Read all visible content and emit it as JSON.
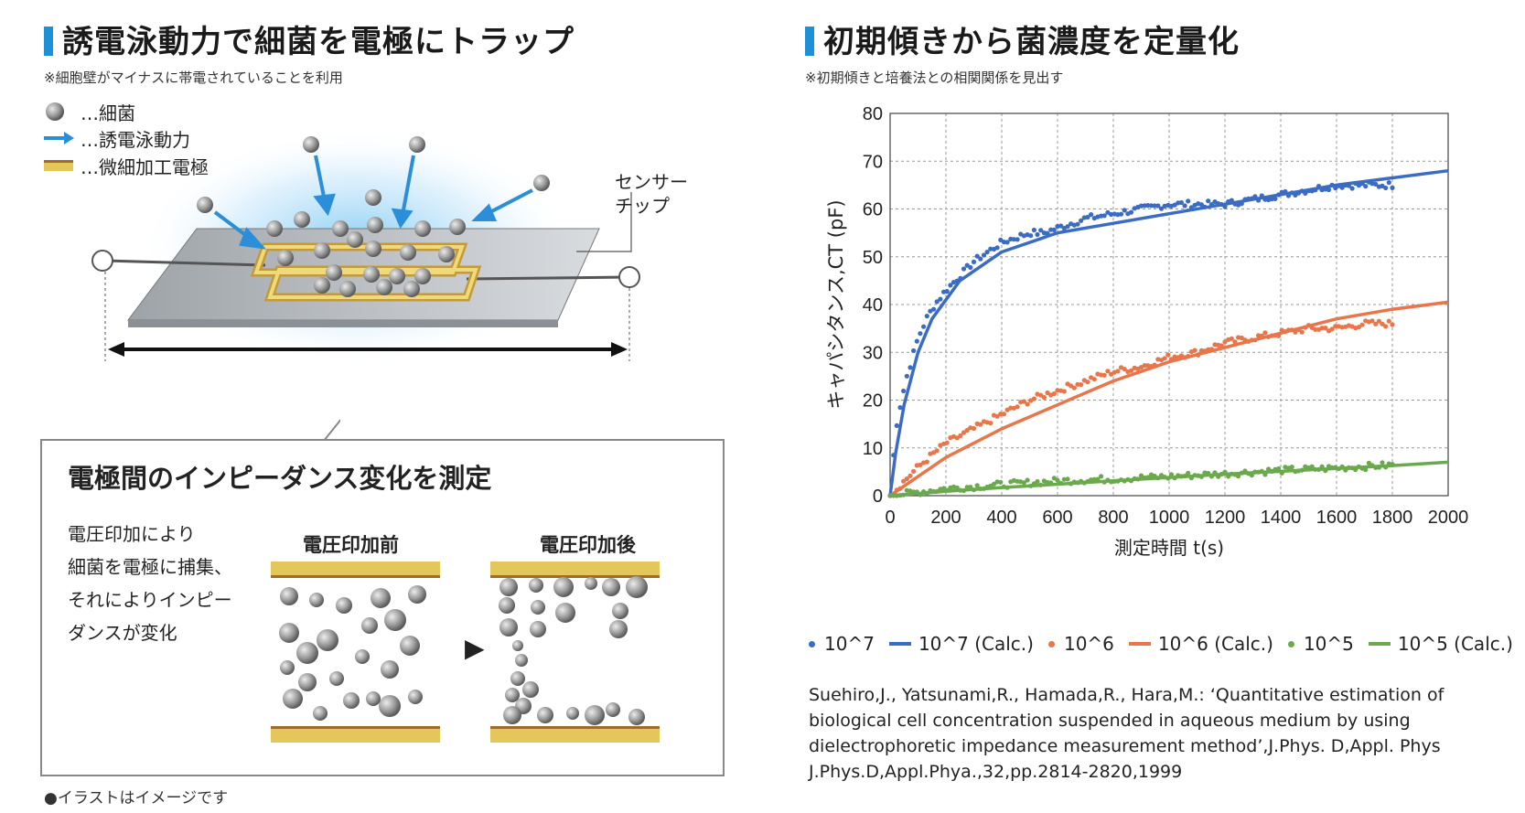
{
  "left": {
    "title": "誘電泳動力で細菌を電極にトラップ",
    "note": "※細胞壁がマイナスに帯電されていることを利用",
    "legend": [
      {
        "icon": "bacteria-ball",
        "label": "…細菌"
      },
      {
        "icon": "arrow",
        "label": "…誘電泳動力"
      },
      {
        "icon": "electrode",
        "label": "…微細加工電極"
      }
    ],
    "sensor_label_line1": "センサー",
    "sensor_label_line2": "チップ",
    "callout": {
      "title": "電極間のインピーダンス変化を測定",
      "text_lines": [
        "電圧印加により",
        "細菌を電極に捕集、",
        "それによりインピー",
        "ダンスが変化"
      ],
      "before_label": "電圧印加前",
      "after_label": "電圧印加後",
      "arrow": "▶"
    },
    "footnote": "●イラストはイメージです"
  },
  "right": {
    "title": "初期傾きから菌濃度を定量化",
    "note": "※初期傾きと培養法との相関関係を見出す",
    "reference_lines": [
      "Suehiro,J., Yatsunami,R., Hamada,R., Hara,M.: ‘Quantitative estimation of",
      "biological cell concentration suspended in aqueous medium by using",
      "dielectrophoretic impedance measurement method’,J.Phys. D,Appl. Phys",
      "J.Phys.D,Appl.Phya.,32,pp.2814-2820,1999"
    ]
  },
  "colors": {
    "blue": "#3a6cc4",
    "orange": "#e8764a",
    "green": "#6aaa4c",
    "accent": "#1f8fd6",
    "gold": "#e3c75a",
    "electrode_edge": "#a06a2a"
  },
  "chart_data": {
    "type": "line+scatter",
    "xlabel": "測定時間 t(s)",
    "ylabel": "キャパシタンス,CT (pF)",
    "xlim": [
      0,
      2000
    ],
    "ylim": [
      0,
      80
    ],
    "xticks": [
      "0",
      "200",
      "400",
      "600",
      "800",
      "1000",
      "1200",
      "1400",
      "1600",
      "1800",
      "2000"
    ],
    "yticks": [
      "0",
      "10",
      "20",
      "30",
      "40",
      "50",
      "60",
      "70",
      "80"
    ],
    "grid": true,
    "legend_position": "bottom",
    "series": [
      {
        "name": "10^7",
        "kind": "scatter",
        "color": "#3a6cc4",
        "x": [
          0,
          20,
          40,
          60,
          80,
          100,
          130,
          160,
          200,
          250,
          300,
          350,
          400,
          450,
          500,
          550,
          600,
          700,
          800,
          900,
          1000,
          1100,
          1200,
          1300,
          1400,
          1500,
          1600,
          1700,
          1800
        ],
        "y": [
          0,
          14,
          20,
          25,
          29,
          33,
          37,
          40,
          43,
          46,
          49,
          51,
          53,
          54,
          55,
          55,
          56,
          58,
          59,
          60,
          61,
          61,
          61,
          62,
          63,
          64,
          65,
          65,
          65
        ]
      },
      {
        "name": "10^7 (Calc.)",
        "kind": "line",
        "color": "#3a6cc4",
        "x": [
          0,
          20,
          50,
          100,
          150,
          200,
          250,
          300,
          400,
          500,
          600,
          800,
          1000,
          1200,
          1400,
          1600,
          1800,
          2000
        ],
        "y": [
          0,
          9,
          19,
          30,
          37,
          41,
          45,
          47,
          51,
          53,
          55,
          57,
          59,
          61,
          63,
          65,
          66.5,
          68
        ]
      },
      {
        "name": "10^6",
        "kind": "scatter",
        "color": "#e8764a",
        "x": [
          0,
          100,
          200,
          300,
          400,
          500,
          600,
          700,
          800,
          900,
          1000,
          1100,
          1200,
          1300,
          1400,
          1500,
          1600,
          1700,
          1800
        ],
        "y": [
          0,
          6,
          11,
          14,
          17,
          20,
          22,
          24,
          26,
          27,
          29,
          30,
          32,
          33,
          34,
          35,
          35,
          36,
          36
        ]
      },
      {
        "name": "10^6 (Calc.)",
        "kind": "line",
        "color": "#e8764a",
        "x": [
          0,
          100,
          200,
          400,
          600,
          800,
          1000,
          1200,
          1400,
          1600,
          1800,
          2000
        ],
        "y": [
          0,
          4,
          8,
          14,
          19,
          24,
          28,
          31,
          34,
          37,
          39,
          40.5
        ]
      },
      {
        "name": "10^5",
        "kind": "scatter",
        "color": "#6aaa4c",
        "x": [
          0,
          200,
          400,
          600,
          800,
          1000,
          1200,
          1400,
          1600,
          1800
        ],
        "y": [
          0,
          1.5,
          2.3,
          3.1,
          3.5,
          4,
          4.6,
          5.3,
          5.8,
          6.4
        ]
      },
      {
        "name": "10^5 (Calc.)",
        "kind": "line",
        "color": "#6aaa4c",
        "x": [
          0,
          200,
          400,
          600,
          800,
          1000,
          1200,
          1400,
          1600,
          1800,
          2000
        ],
        "y": [
          0,
          0.9,
          1.7,
          2.4,
          3.1,
          3.8,
          4.5,
          5.1,
          5.7,
          6.3,
          7
        ]
      }
    ]
  }
}
